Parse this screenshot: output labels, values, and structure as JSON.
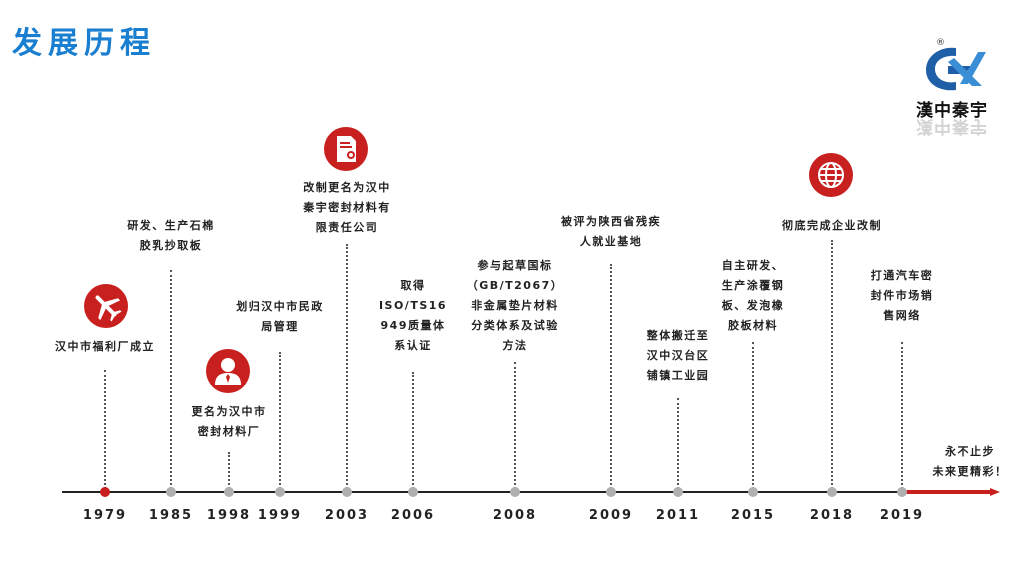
{
  "title": "发展历程",
  "logo": {
    "text": "漢中秦宇",
    "reg": "®"
  },
  "milestones": [
    {
      "year": "1979",
      "label": "汉中市福利厂成立"
    },
    {
      "year": "1985",
      "label": "研发、生产石棉\n胶乳抄取板"
    },
    {
      "year": "1998",
      "label": "更名为汉中市\n密封材料厂"
    },
    {
      "year": "1999",
      "label": "划归汉中市民政\n局管理"
    },
    {
      "year": "2003",
      "label": "改制更名为汉中\n秦宇密封材料有\n限责任公司"
    },
    {
      "year": "2006",
      "label": "取得\nISO/TS16\n949质量体\n系认证"
    },
    {
      "year": "2008",
      "label": "参与起草国标\n（GB/T2067）\n非金属垫片材料\n分类体系及试验\n方法"
    },
    {
      "year": "2009",
      "label": "被评为陕西省残疾\n人就业基地"
    },
    {
      "year": "2011",
      "label": "整体搬迁至\n汉中汉台区\n铺镇工业园"
    },
    {
      "year": "2015",
      "label": "自主研发、\n生产涂覆钢\n板、发泡橡\n胶板材料"
    },
    {
      "year": "2018",
      "label": "彻底完成企业改制"
    },
    {
      "year": "2019",
      "label": "打通汽车密\n封件市场销\n售网络"
    }
  ],
  "ending": "永不止步\n未来更精彩！",
  "icons": [
    "airplane-icon",
    "person-icon",
    "certificate-icon",
    "globe-icon"
  ],
  "colors": {
    "title": "#1a7fd0",
    "accent": "#c8201e",
    "dot": "#b0b0b0"
  }
}
